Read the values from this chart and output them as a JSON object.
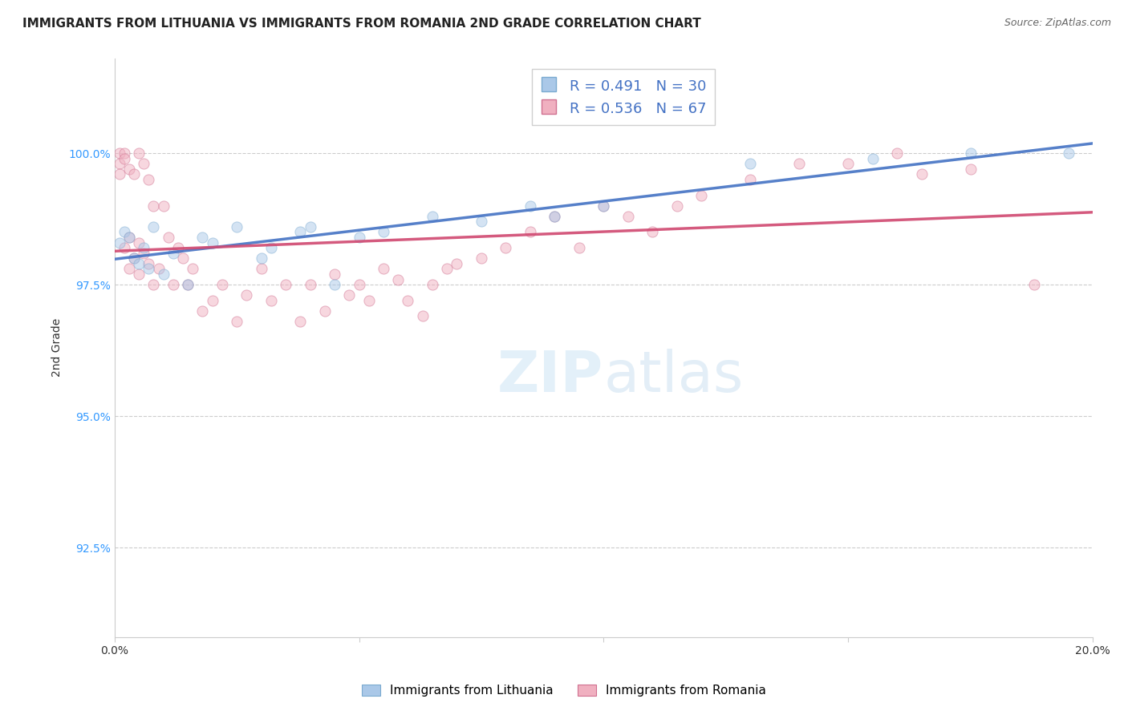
{
  "title": "IMMIGRANTS FROM LITHUANIA VS IMMIGRANTS FROM ROMANIA 2ND GRADE CORRELATION CHART",
  "source": "Source: ZipAtlas.com",
  "ylabel": "2nd Grade",
  "xlim": [
    0.0,
    0.2
  ],
  "ylim": [
    0.908,
    1.018
  ],
  "xticks": [
    0.0,
    0.05,
    0.1,
    0.15,
    0.2
  ],
  "xtick_labels": [
    "0.0%",
    "",
    "",
    "",
    "20.0%"
  ],
  "yticks": [
    0.925,
    0.95,
    0.975,
    1.0
  ],
  "ytick_labels": [
    "92.5%",
    "95.0%",
    "97.5%",
    "100.0%"
  ],
  "grid_color": "#cccccc",
  "background_color": "#ffffff",
  "lithuania_color": "#aac8e8",
  "lithuania_edge": "#7aaad0",
  "lithuania_R": 0.491,
  "lithuania_N": 30,
  "lithuania_line_color": "#4472C4",
  "romania_color": "#f0b0c0",
  "romania_edge": "#d07090",
  "romania_R": 0.536,
  "romania_N": 67,
  "romania_line_color": "#d04870",
  "lithuania_x": [
    0.001,
    0.002,
    0.003,
    0.004,
    0.005,
    0.006,
    0.007,
    0.008,
    0.01,
    0.012,
    0.015,
    0.018,
    0.02,
    0.025,
    0.03,
    0.032,
    0.038,
    0.04,
    0.045,
    0.05,
    0.055,
    0.065,
    0.075,
    0.085,
    0.09,
    0.1,
    0.13,
    0.155,
    0.175,
    0.195
  ],
  "lithuania_y": [
    0.983,
    0.985,
    0.984,
    0.98,
    0.979,
    0.982,
    0.978,
    0.986,
    0.977,
    0.981,
    0.975,
    0.984,
    0.983,
    0.986,
    0.98,
    0.982,
    0.985,
    0.986,
    0.975,
    0.984,
    0.985,
    0.988,
    0.987,
    0.99,
    0.988,
    0.99,
    0.998,
    0.999,
    1.0,
    1.0
  ],
  "romania_x": [
    0.001,
    0.001,
    0.001,
    0.002,
    0.002,
    0.002,
    0.003,
    0.003,
    0.003,
    0.004,
    0.004,
    0.005,
    0.005,
    0.005,
    0.006,
    0.006,
    0.007,
    0.007,
    0.008,
    0.008,
    0.009,
    0.01,
    0.011,
    0.012,
    0.013,
    0.014,
    0.015,
    0.016,
    0.018,
    0.02,
    0.022,
    0.025,
    0.027,
    0.03,
    0.032,
    0.035,
    0.038,
    0.04,
    0.043,
    0.045,
    0.048,
    0.05,
    0.052,
    0.055,
    0.058,
    0.06,
    0.063,
    0.065,
    0.068,
    0.07,
    0.075,
    0.08,
    0.085,
    0.09,
    0.095,
    0.1,
    0.105,
    0.11,
    0.115,
    0.12,
    0.13,
    0.14,
    0.15,
    0.16,
    0.165,
    0.175,
    0.188
  ],
  "romania_y": [
    1.0,
    0.998,
    0.996,
    1.0,
    0.999,
    0.982,
    0.997,
    0.984,
    0.978,
    0.996,
    0.98,
    1.0,
    0.983,
    0.977,
    0.998,
    0.981,
    0.995,
    0.979,
    0.99,
    0.975,
    0.978,
    0.99,
    0.984,
    0.975,
    0.982,
    0.98,
    0.975,
    0.978,
    0.97,
    0.972,
    0.975,
    0.968,
    0.973,
    0.978,
    0.972,
    0.975,
    0.968,
    0.975,
    0.97,
    0.977,
    0.973,
    0.975,
    0.972,
    0.978,
    0.976,
    0.972,
    0.969,
    0.975,
    0.978,
    0.979,
    0.98,
    0.982,
    0.985,
    0.988,
    0.982,
    0.99,
    0.988,
    0.985,
    0.99,
    0.992,
    0.995,
    0.998,
    0.998,
    1.0,
    0.996,
    0.997,
    0.975
  ],
  "marker_size": 10,
  "alpha": 0.5,
  "legend_fontsize": 13,
  "title_fontsize": 11,
  "axis_fontsize": 10
}
